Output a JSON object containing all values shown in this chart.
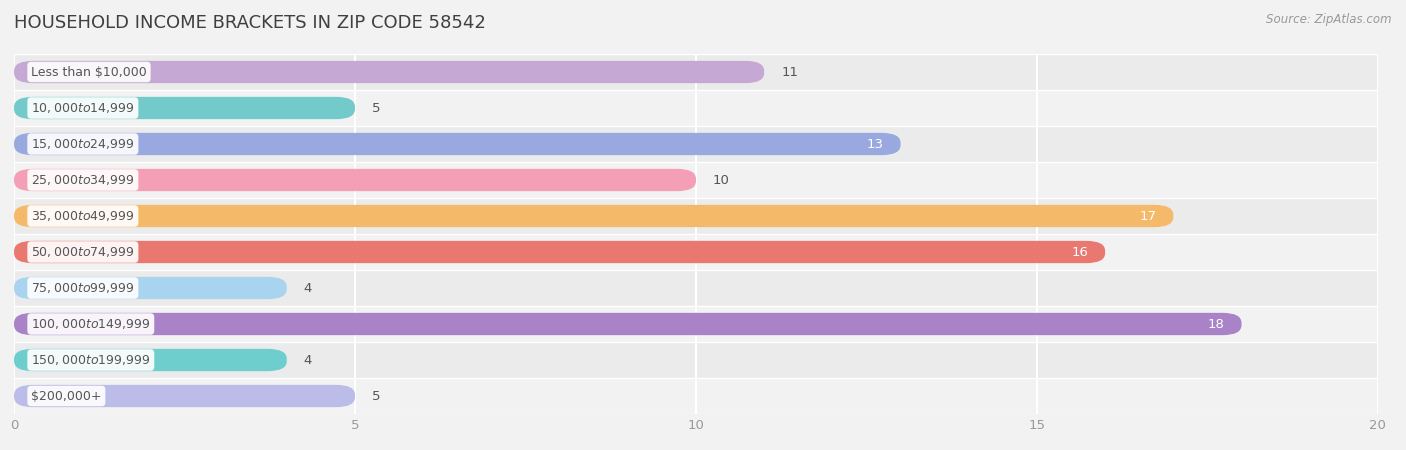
{
  "title": "HOUSEHOLD INCOME BRACKETS IN ZIP CODE 58542",
  "source": "Source: ZipAtlas.com",
  "categories": [
    "Less than $10,000",
    "$10,000 to $14,999",
    "$15,000 to $24,999",
    "$25,000 to $34,999",
    "$35,000 to $49,999",
    "$50,000 to $74,999",
    "$75,000 to $99,999",
    "$100,000 to $149,999",
    "$150,000 to $199,999",
    "$200,000+"
  ],
  "values": [
    11,
    5,
    13,
    10,
    17,
    16,
    4,
    18,
    4,
    5
  ],
  "bar_colors": [
    "#c5a8d4",
    "#72caca",
    "#9aa8e0",
    "#f49fb5",
    "#f5b96a",
    "#e87870",
    "#a8d4f0",
    "#aa82c8",
    "#6ecece",
    "#bbbce8"
  ],
  "label_colors": [
    "#555555",
    "#555555",
    "white",
    "#555555",
    "white",
    "white",
    "#555555",
    "white",
    "#555555",
    "#555555"
  ],
  "xlim": [
    0,
    20
  ],
  "xticks": [
    0,
    5,
    10,
    15,
    20
  ],
  "background_color": "#f2f2f2",
  "row_bg_even": "#ebebeb",
  "row_bg_odd": "#f2f2f2",
  "title_fontsize": 13,
  "bar_height": 0.62,
  "value_fontsize": 9.5,
  "category_fontsize": 9.0
}
